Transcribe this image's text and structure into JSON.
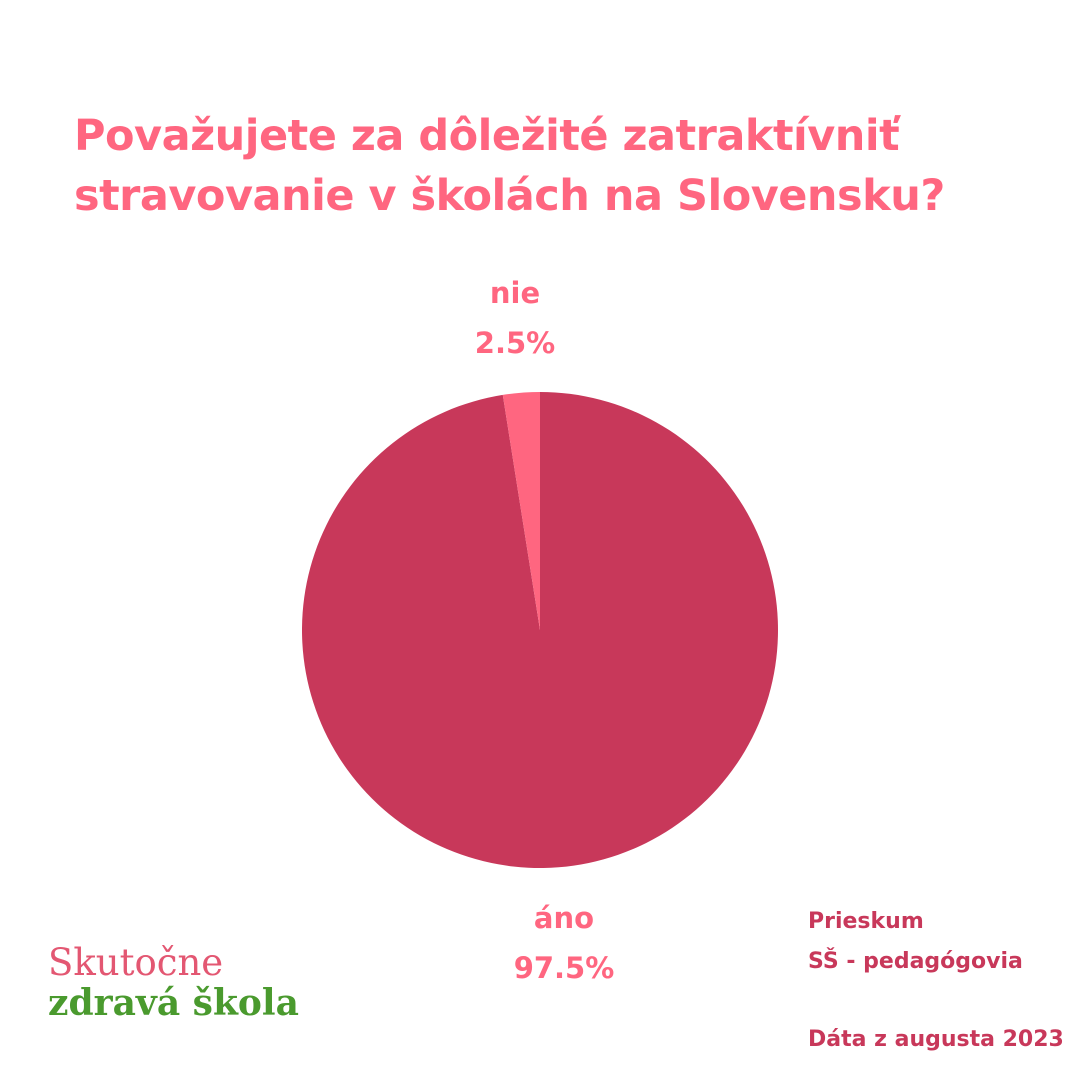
{
  "title": {
    "line1": "Považujete za dôležité zatraktívniť",
    "line2": "stravovanie v školách na Slovensku?"
  },
  "chart_data": {
    "type": "pie",
    "title": "Považujete za dôležité zatraktívniť stravovanie v školách na Slovensku?",
    "slices": [
      {
        "label": "áno",
        "value": 97.5,
        "display": "97.5%",
        "color": "#c8385a"
      },
      {
        "label": "nie",
        "value": 2.5,
        "display": "2.5%",
        "color": "#ff6680"
      }
    ]
  },
  "survey": {
    "line1": "Prieskum",
    "line2": "SŠ - pedagógovia",
    "date": "Dáta z augusta 2023"
  },
  "logo": {
    "line1": "Skutočne",
    "line2": "zdravá škola",
    "color1": "#e35772",
    "color2": "#4a9a2e"
  },
  "colors": {
    "title": "#ff6680",
    "labels": "#ff6680",
    "survey": "#c8385a",
    "background": "#ffffff"
  }
}
